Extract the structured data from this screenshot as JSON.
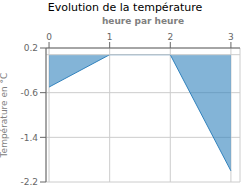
{
  "chart_data": {
    "type": "area",
    "title": "Evolution de la température",
    "ylabel": "Température en °C",
    "xlabel": "heure par heure",
    "x": [
      0,
      1,
      2,
      3
    ],
    "values": [
      -0.5,
      0.08,
      0.08,
      -2.0
    ],
    "baseline": 0.08,
    "xlim": [
      -0.05,
      3.15
    ],
    "ylim": [
      -2.2,
      0.2
    ],
    "xticks": [
      0,
      1,
      2,
      3
    ],
    "yticks": [
      0.2,
      -0.6,
      -1.4,
      -2.2
    ],
    "grid": true
  }
}
